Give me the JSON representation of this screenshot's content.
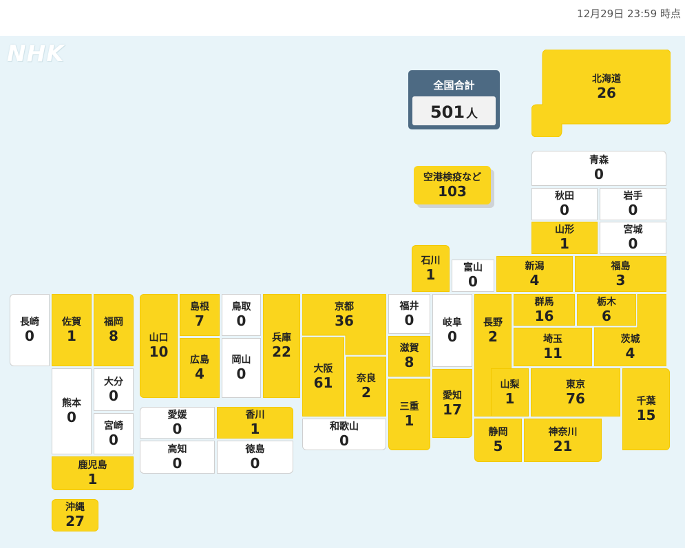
{
  "header": {
    "timestamp": "12月29日 23:59 時点"
  },
  "logo": {
    "text": "NHK"
  },
  "total": {
    "label": "全国合計",
    "value": "501",
    "unit": "人"
  },
  "airport": {
    "name": "空港検疫など",
    "count": "103"
  },
  "colors": {
    "positive": "#fad51d",
    "zero": "#ffffff",
    "sea": "#e8f4f9",
    "total_box": "#4d6a83"
  },
  "prefectures": {
    "hokkaido": {
      "name": "北海道",
      "count": "26"
    },
    "aomori": {
      "name": "青森",
      "count": "0"
    },
    "akita": {
      "name": "秋田",
      "count": "0"
    },
    "iwate": {
      "name": "岩手",
      "count": "0"
    },
    "yamagata": {
      "name": "山形",
      "count": "1"
    },
    "miyagi": {
      "name": "宮城",
      "count": "0"
    },
    "ishikawa": {
      "name": "石川",
      "count": "1"
    },
    "toyama": {
      "name": "富山",
      "count": "0"
    },
    "niigata": {
      "name": "新潟",
      "count": "4"
    },
    "fukushima": {
      "name": "福島",
      "count": "3"
    },
    "gunma": {
      "name": "群馬",
      "count": "16"
    },
    "tochigi": {
      "name": "栃木",
      "count": "6"
    },
    "saitama": {
      "name": "埼玉",
      "count": "11"
    },
    "ibaraki": {
      "name": "茨城",
      "count": "4"
    },
    "nagano": {
      "name": "長野",
      "count": "2"
    },
    "gifu": {
      "name": "岐阜",
      "count": "0"
    },
    "fukui": {
      "name": "福井",
      "count": "0"
    },
    "shiga": {
      "name": "滋賀",
      "count": "8"
    },
    "kyoto": {
      "name": "京都",
      "count": "36"
    },
    "osaka": {
      "name": "大阪",
      "count": "61"
    },
    "nara": {
      "name": "奈良",
      "count": "2"
    },
    "wakayama": {
      "name": "和歌山",
      "count": "0"
    },
    "mie": {
      "name": "三重",
      "count": "1"
    },
    "aichi": {
      "name": "愛知",
      "count": "17"
    },
    "yamanashi": {
      "name": "山梨",
      "count": "1"
    },
    "tokyo": {
      "name": "東京",
      "count": "76"
    },
    "chiba": {
      "name": "千葉",
      "count": "15"
    },
    "shizuoka": {
      "name": "静岡",
      "count": "5"
    },
    "kanagawa": {
      "name": "神奈川",
      "count": "21"
    },
    "hyogo": {
      "name": "兵庫",
      "count": "22"
    },
    "tottori": {
      "name": "鳥取",
      "count": "0"
    },
    "okayama": {
      "name": "岡山",
      "count": "0"
    },
    "shimane": {
      "name": "島根",
      "count": "7"
    },
    "hiroshima": {
      "name": "広島",
      "count": "4"
    },
    "yamaguchi": {
      "name": "山口",
      "count": "10"
    },
    "ehime": {
      "name": "愛媛",
      "count": "0"
    },
    "kagawa": {
      "name": "香川",
      "count": "1"
    },
    "kochi": {
      "name": "高知",
      "count": "0"
    },
    "tokushima": {
      "name": "徳島",
      "count": "0"
    },
    "nagasaki": {
      "name": "長崎",
      "count": "0"
    },
    "saga": {
      "name": "佐賀",
      "count": "1"
    },
    "fukuoka": {
      "name": "福岡",
      "count": "8"
    },
    "oita": {
      "name": "大分",
      "count": "0"
    },
    "kumamoto": {
      "name": "熊本",
      "count": "0"
    },
    "miyazaki": {
      "name": "宮崎",
      "count": "0"
    },
    "kagoshima": {
      "name": "鹿児島",
      "count": "1"
    },
    "okinawa": {
      "name": "沖縄",
      "count": "27"
    }
  }
}
